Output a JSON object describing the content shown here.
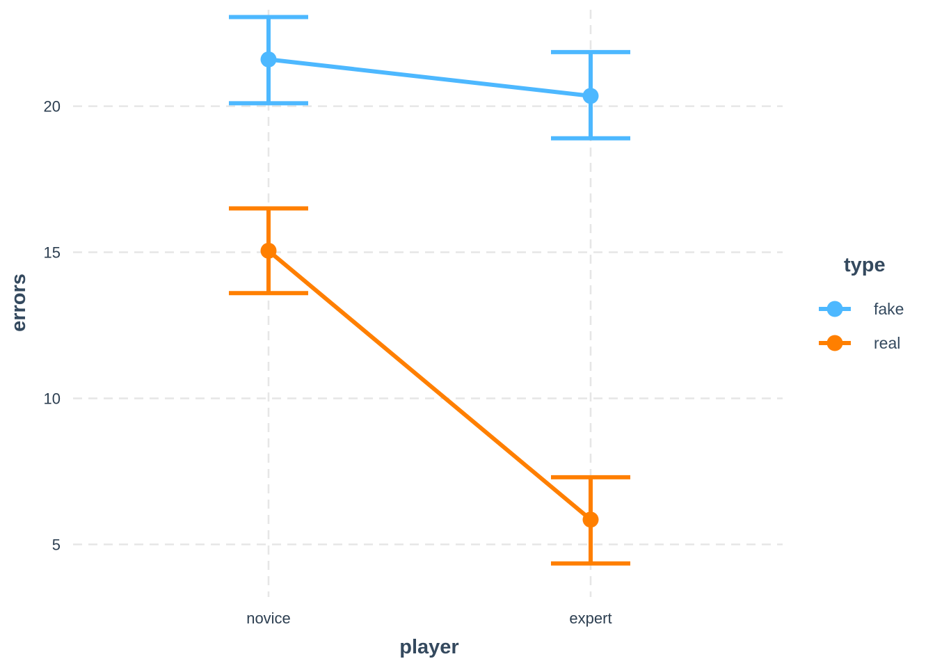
{
  "chart_data": {
    "type": "line",
    "title": "",
    "xlabel": "player",
    "ylabel": "errors",
    "categories": [
      "novice",
      "expert"
    ],
    "y_ticks": [
      5,
      10,
      15,
      20
    ],
    "ylim": [
      3.2,
      23.3
    ],
    "grid": true,
    "legend": {
      "title": "type",
      "placement": "right"
    },
    "series": [
      {
        "name": "fake",
        "color": "#4db8ff",
        "values": [
          21.6,
          20.35
        ],
        "error_low": [
          20.1,
          18.9
        ],
        "error_high": [
          23.05,
          21.85
        ]
      },
      {
        "name": "real",
        "color": "#ff7f00",
        "values": [
          15.05,
          5.85
        ],
        "error_low": [
          13.6,
          4.35
        ],
        "error_high": [
          16.5,
          7.3
        ]
      }
    ]
  }
}
